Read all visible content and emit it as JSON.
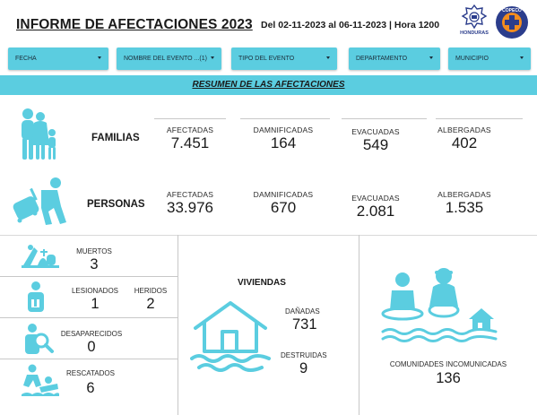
{
  "header": {
    "title": "INFORME DE AFECTACIONES 2023",
    "daterange": "Del 02-11-2023 al 06-11-2023 | Hora 1200",
    "logo_honduras": "HONDURAS",
    "logo_copeco": "COPECO"
  },
  "filters": [
    {
      "label": "FECHA"
    },
    {
      "label": "NOMBRE DEL EVENTO ...(1)"
    },
    {
      "label": "TIPO DEL EVENTO"
    },
    {
      "label": "DEPARTAMENTO"
    },
    {
      "label": "MUNICIPIO"
    }
  ],
  "banner": "RESUMEN DE LAS AFECTACIONES",
  "familias": {
    "label": "FAMILIAS",
    "icon": "family-icon",
    "metrics": [
      {
        "label": "AFECTADAS",
        "value": "7.451"
      },
      {
        "label": "DAMNIFICADAS",
        "value": "164"
      },
      {
        "label": "EVACUADAS",
        "value": "549"
      },
      {
        "label": "ALBERGADAS",
        "value": "402"
      }
    ]
  },
  "personas": {
    "label": "PERSONAS",
    "icon": "person-luggage-icon",
    "metrics": [
      {
        "label": "AFECTADAS",
        "value": "33.976"
      },
      {
        "label": "DAMNIFICADAS",
        "value": "670"
      },
      {
        "label": "EVACUADAS",
        "value": "2.081"
      },
      {
        "label": "ALBERGADAS",
        "value": "1.535"
      }
    ]
  },
  "muertos": {
    "label": "MUERTOS",
    "value": "3",
    "icon": "funeral-icon"
  },
  "lesionados": {
    "label": "LESIONADOS",
    "value": "1",
    "icon": "injured-icon"
  },
  "heridos": {
    "label": "HERIDOS",
    "value": "2"
  },
  "desaparecidos": {
    "label": "DESAPARECIDOS",
    "value": "0",
    "icon": "missing-person-icon"
  },
  "rescatados": {
    "label": "RESCATADOS",
    "value": "6",
    "icon": "rescue-icon"
  },
  "viviendas": {
    "title": "VIVIENDAS",
    "icon": "flooded-house-icon",
    "danadas_label": "DAÑADAS",
    "danadas_value": "731",
    "destruidas_label": "DESTRUIDAS",
    "destruidas_value": "9"
  },
  "comunidades": {
    "label": "COMUNIDADES INCOMUNICADAS",
    "value": "136",
    "icon": "isolated-community-icon"
  },
  "colors": {
    "accent": "#5bcde0",
    "icon": "#5bcde0",
    "logo_blue": "#2b3d8c",
    "logo_orange": "#f28c1e"
  }
}
